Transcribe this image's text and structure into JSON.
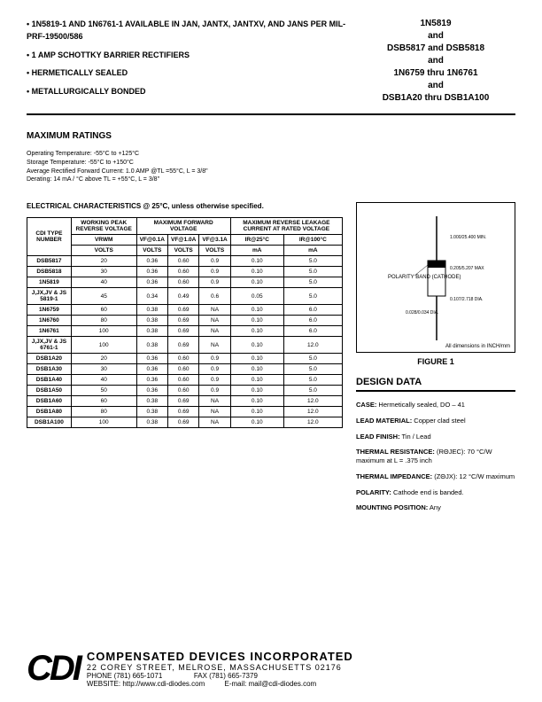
{
  "header": {
    "bullets": [
      "1N5819-1 AND 1N6761-1 AVAILABLE IN JAN, JANTX, JANTXV, AND JANS PER MIL-PRF-19500/586",
      "1 AMP SCHOTTKY BARRIER RECTIFIERS",
      "HERMETICALLY SEALED",
      "METALLURGICALLY BONDED"
    ],
    "parts": [
      "1N5819",
      "and",
      "DSB5817 and DSB5818",
      "and",
      "1N6759 thru 1N6761",
      "and",
      "DSB1A20 thru DSB1A100"
    ]
  },
  "maxratings": {
    "title": "MAXIMUM RATINGS",
    "lines": [
      "Operating Temperature:  -55°C to +125°C",
      "Storage Temperature:  -55°C to +150°C",
      "Average Rectified Forward Current:  1.0 AMP @TL =55°C, L = 3/8\"",
      "Derating: 14 mA / °C above  TL = +55°C, L = 3/8\""
    ]
  },
  "electrical": {
    "title": "ELECTRICAL CHARACTERISTICS @ 25°C, unless otherwise specified.",
    "headers": {
      "type": "CDI TYPE NUMBER",
      "vrwm": "WORKING PEAK REVERSE VOLTAGE",
      "vf": "MAXIMUM FORWARD VOLTAGE",
      "ir": "MAXIMUM REVERSE LEAKAGE CURRENT AT RATED VOLTAGE",
      "vrwm_sub": "VRWM",
      "vf1": "VF@0.1A",
      "vf2": "VF@1.0A",
      "vf3": "VF@3.1A",
      "ir1": "IR@25°C",
      "ir2": "IR@100°C",
      "volts": "VOLTS",
      "ma": "mA"
    },
    "rows": [
      [
        "DSB5817",
        "20",
        "0.36",
        "0.60",
        "0.9",
        "0.10",
        "5.0"
      ],
      [
        "DSB5818",
        "30",
        "0.36",
        "0.60",
        "0.9",
        "0.10",
        "5.0"
      ],
      [
        "1N5819",
        "40",
        "0.36",
        "0.60",
        "0.9",
        "0.10",
        "5.0"
      ],
      [
        "J,JX,JV & JS 5819-1",
        "45",
        "0.34",
        "0.49",
        "0.6",
        "0.05",
        "5.0"
      ],
      [
        "1N6759",
        "60",
        "0.38",
        "0.69",
        "NA",
        "0.10",
        "6.0"
      ],
      [
        "1N6760",
        "80",
        "0.38",
        "0.69",
        "NA",
        "0.10",
        "6.0"
      ],
      [
        "1N6761",
        "100",
        "0.38",
        "0.69",
        "NA",
        "0.10",
        "6.0"
      ],
      [
        "J,JX,JV & JS 6761-1",
        "100",
        "0.38",
        "0.69",
        "NA",
        "0.10",
        "12.0"
      ],
      [
        "DSB1A20",
        "20",
        "0.36",
        "0.60",
        "0.9",
        "0.10",
        "5.0"
      ],
      [
        "DSB1A30",
        "30",
        "0.36",
        "0.60",
        "0.9",
        "0.10",
        "5.0"
      ],
      [
        "DSB1A40",
        "40",
        "0.36",
        "0.60",
        "0.9",
        "0.10",
        "5.0"
      ],
      [
        "DSB1A50",
        "50",
        "0.36",
        "0.60",
        "0.9",
        "0.10",
        "5.0"
      ],
      [
        "DSB1A60",
        "60",
        "0.38",
        "0.69",
        "NA",
        "0.10",
        "12.0"
      ],
      [
        "DSB1A80",
        "80",
        "0.38",
        "0.69",
        "NA",
        "0.10",
        "12.0"
      ],
      [
        "DSB1A100",
        "100",
        "0.38",
        "0.69",
        "NA",
        "0.10",
        "12.0"
      ]
    ]
  },
  "figure": {
    "label": "FIGURE 1",
    "dimnote": "All dimensions in INCH/mm"
  },
  "design": {
    "title": "DESIGN DATA",
    "items": [
      {
        "k": "CASE:",
        "v": "Hermetically sealed, DO – 41"
      },
      {
        "k": "LEAD MATERIAL:",
        "v": "Copper clad steel"
      },
      {
        "k": "LEAD FINISH:",
        "v": "Tin / Lead"
      },
      {
        "k": "THERMAL RESISTANCE:",
        "v": "(RΘJEC): 70 °C/W maximum at L = .375 inch"
      },
      {
        "k": "THERMAL IMPEDANCE:",
        "v": "(ZΘJX): 12 °C/W maximum"
      },
      {
        "k": "POLARITY:",
        "v": "Cathode end is banded."
      },
      {
        "k": "MOUNTING POSITION:",
        "v": "Any"
      }
    ]
  },
  "footer": {
    "company": "COMPENSATED DEVICES INCORPORATED",
    "addr": "22 COREY STREET, MELROSE, MASSACHUSETTS 02176",
    "phone": "PHONE (781) 665-1071",
    "fax": "FAX (781) 665-7379",
    "web": "WEBSITE:  http://www.cdi-diodes.com",
    "email": "E-mail: mail@cdi-diodes.com"
  }
}
